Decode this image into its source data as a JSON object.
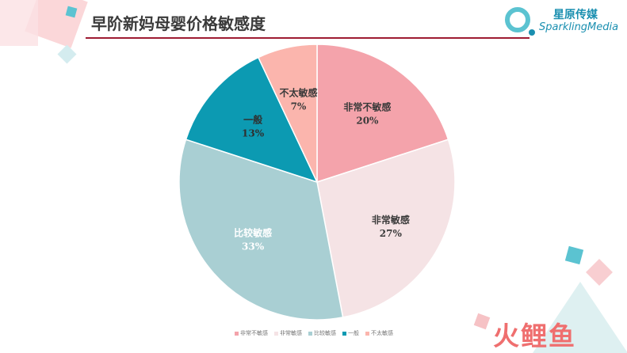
{
  "title": "早阶新妈母婴价格敏感度",
  "brand": {
    "cn": "星原传媒",
    "en": "SparklingMedia"
  },
  "watermark": "火鲤鱼",
  "colors": {
    "title_rule": "#9e1b32",
    "brand": "#1a8fb0"
  },
  "chart_data": {
    "type": "pie",
    "title": "",
    "slices": [
      {
        "label": "非常不敏感",
        "value": 20,
        "value_label": "20%",
        "color": "#f4a3ab",
        "text_color": "#3a3a3a"
      },
      {
        "label": "非常敏感",
        "value": 27,
        "value_label": "27%",
        "color": "#f5e3e5",
        "text_color": "#3a3a3a"
      },
      {
        "label": "比较敏感",
        "value": 33,
        "value_label": "33%",
        "color": "#a9cfd3",
        "text_color": "#ffffff"
      },
      {
        "label": "一般",
        "value": 13,
        "value_label": "13%",
        "color": "#0c9ab2",
        "text_color": "#2f2f2f"
      },
      {
        "label": "不太敏感",
        "value": 7,
        "value_label": "7%",
        "color": "#fbb5ad",
        "text_color": "#3a3a3a"
      }
    ],
    "legend_position": "bottom"
  }
}
